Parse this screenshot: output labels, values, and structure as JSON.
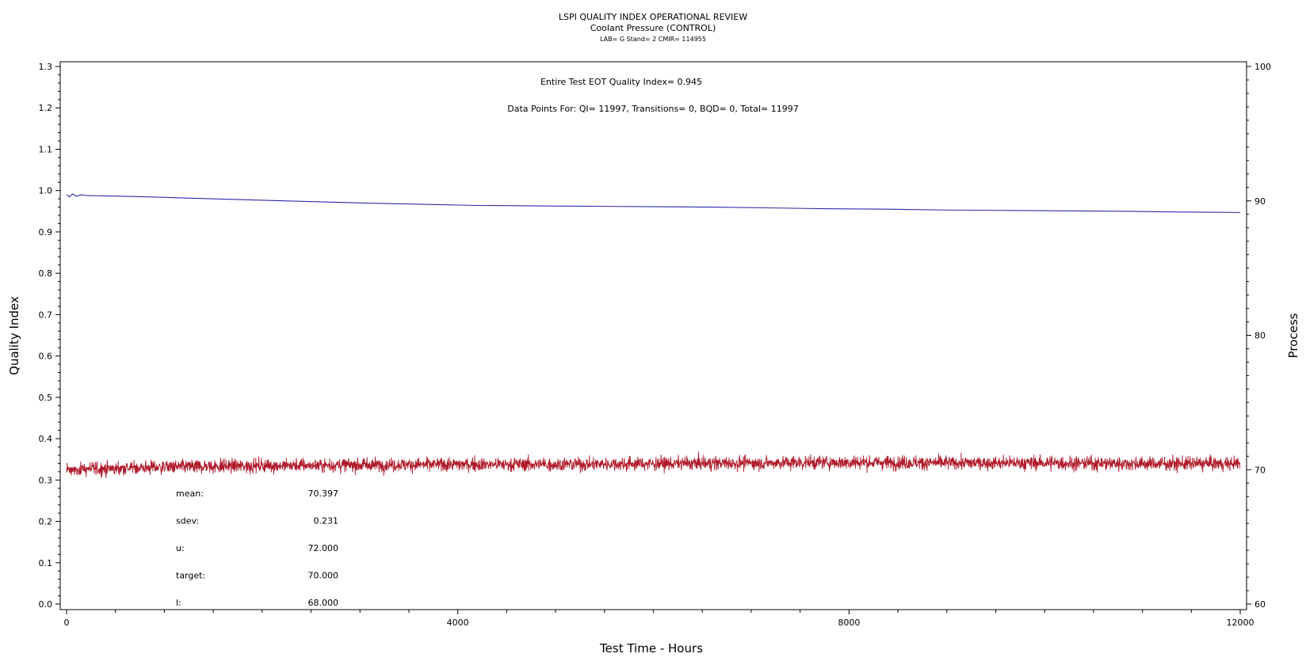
{
  "chart_data": {
    "type": "line",
    "title": "LSPI QUALITY INDEX OPERATIONAL REVIEW",
    "subtitle": "Coolant Pressure (CONTROL)",
    "caption": "LAB= G Stand= 2 CMIR= 114955",
    "annotations": [
      "Entire Test EOT Quality Index=   0.945",
      "Data Points For: QI= 11997, Transitions=      0, BQD=      0, Total= 11997"
    ],
    "xlabel": "Test Time - Hours",
    "ylabel": "Quality Index",
    "y2label": "Process",
    "xlim": [
      0,
      12000
    ],
    "ylim": [
      0,
      1.3
    ],
    "y2lim": [
      60,
      100
    ],
    "x_ticks": [
      "0",
      "4000",
      "8000",
      "12000"
    ],
    "y_ticks": [
      "0.0",
      "0.1",
      "0.2",
      "0.3",
      "0.4",
      "0.5",
      "0.6",
      "0.7",
      "0.8",
      "0.9",
      "1.0",
      "1.1",
      "1.2",
      "1.3"
    ],
    "y2_ticks": [
      "60",
      "70",
      "80",
      "90",
      "100"
    ],
    "series": [
      {
        "axis": "left",
        "color": "#2a2aa8",
        "x": [
          0,
          30,
          60,
          100,
          150,
          200,
          400,
          800,
          1200,
          1800,
          2400,
          3000,
          3600,
          4200,
          4800,
          5400,
          6000,
          6600,
          7200,
          7800,
          8400,
          9000,
          9600,
          10200,
          10800,
          11400,
          12000
        ],
        "values": [
          0.99,
          0.985,
          0.992,
          0.986,
          0.99,
          0.988,
          0.987,
          0.985,
          0.982,
          0.978,
          0.974,
          0.97,
          0.967,
          0.964,
          0.963,
          0.962,
          0.961,
          0.96,
          0.958,
          0.956,
          0.955,
          0.953,
          0.952,
          0.951,
          0.95,
          0.948,
          0.947
        ]
      },
      {
        "axis": "right",
        "color": "#b01a2a",
        "x": [
          0,
          1000,
          2000,
          3000,
          4000,
          5000,
          6000,
          7000,
          8000,
          9000,
          10000,
          11000,
          12000
        ],
        "values": [
          70.0,
          70.2,
          70.3,
          70.35,
          70.4,
          70.4,
          70.45,
          70.5,
          70.55,
          70.5,
          70.5,
          70.45,
          70.45
        ],
        "noise_sdev": 0.231
      }
    ],
    "stats": [
      {
        "label": "mean:",
        "value": "70.397"
      },
      {
        "label": "sdev:",
        "value": "0.231"
      },
      {
        "label": "u:",
        "value": "72.000"
      },
      {
        "label": "target:",
        "value": "70.000"
      },
      {
        "label": "l:",
        "value": "68.000"
      }
    ],
    "grid": false
  }
}
